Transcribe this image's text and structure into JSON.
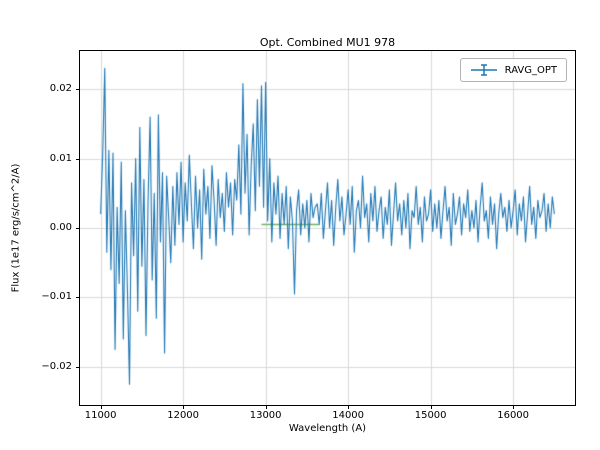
{
  "chart_data": {
    "type": "line",
    "title": "Opt. Combined MU1 978",
    "xlabel": "Wavelength (A)",
    "ylabel": "Flux (1e17 erg/s/cm^2/A)",
    "xlim": [
      10750,
      16750
    ],
    "ylim": [
      -0.0255,
      0.0255
    ],
    "x_ticks": [
      11000,
      12000,
      13000,
      14000,
      15000,
      16000
    ],
    "y_ticks": [
      -0.02,
      -0.01,
      0.0,
      0.01,
      0.02
    ],
    "grid": true,
    "legend_position": "upper right",
    "legend_entries": [
      "RAVG_OPT"
    ],
    "colors": {
      "primary_line": "#1f77b4",
      "overlay_line": "#74b266",
      "grid": "#d9d9d9"
    },
    "series": [
      {
        "name": "RAVG_OPT",
        "color": "#1f77b4",
        "style": "errorbar-line",
        "x_start": 11000,
        "x_step": 25,
        "y_unit_scale": 0.001,
        "y_1e3": [
          2.0,
          10.5,
          23.0,
          -3.5,
          11.2,
          -6.0,
          10.8,
          -17.5,
          3.0,
          -8.0,
          9.5,
          -16.0,
          2.5,
          -9.0,
          -22.5,
          6.5,
          -4.0,
          10.0,
          -12.0,
          14.5,
          -5.5,
          7.0,
          -15.5,
          4.0,
          16.0,
          -7.5,
          5.0,
          -13.0,
          16.3,
          -2.0,
          8.0,
          -18.0,
          7.5,
          1.5,
          -5.0,
          6.0,
          -2.5,
          8.0,
          0.5,
          9.5,
          -2.0,
          6.5,
          1.0,
          10.5,
          3.5,
          -3.0,
          7.5,
          0.0,
          5.5,
          -4.5,
          8.5,
          2.0,
          6.0,
          -1.5,
          9.0,
          4.0,
          -2.5,
          7.0,
          1.5,
          5.0,
          -0.5,
          8.0,
          3.0,
          6.5,
          -1.0,
          7.0,
          4.0,
          12.0,
          2.0,
          20.8,
          5.0,
          13.5,
          -1.0,
          9.0,
          15.0,
          2.5,
          18.5,
          6.0,
          20.5,
          3.0,
          21.0,
          1.0,
          10.0,
          -2.0,
          6.5,
          2.0,
          7.5,
          -1.5,
          5.0,
          0.5,
          6.0,
          -3.0,
          4.5,
          1.0,
          -9.5,
          2.5,
          5.5,
          -1.0,
          3.5,
          0.0,
          4.0,
          -2.0,
          5.0,
          1.5,
          3.0,
          3.5,
          0.5,
          5.0,
          -1.5,
          2.5,
          6.5,
          0.0,
          4.0,
          -2.5,
          3.0,
          7.0,
          1.0,
          4.5,
          -1.0,
          2.0,
          5.5,
          0.5,
          6.0,
          -3.5,
          2.5,
          4.0,
          0.0,
          7.5,
          1.5,
          3.5,
          -2.0,
          5.0,
          1.0,
          6.0,
          -0.5,
          2.5,
          4.5,
          -1.5,
          3.0,
          0.5,
          5.5,
          -2.5,
          2.0,
          6.5,
          1.0,
          3.5,
          -1.0,
          4.0,
          0.0,
          5.0,
          -3.0,
          2.5,
          1.5,
          6.0,
          0.5,
          3.0,
          -2.0,
          4.5,
          1.0,
          2.0,
          5.5,
          -0.5,
          3.5,
          0.0,
          4.0,
          -1.5,
          2.5,
          6.0,
          1.0,
          3.0,
          -2.5,
          5.0,
          0.5,
          2.0,
          4.5,
          -1.0,
          3.5,
          1.5,
          5.5,
          -0.5,
          2.5,
          0.0,
          4.0,
          -2.0,
          3.0,
          6.5,
          1.0,
          2.5,
          -1.5,
          4.5,
          0.5,
          3.5,
          -3.0,
          2.0,
          5.0,
          1.5,
          3.0,
          -0.5,
          4.0,
          0.0,
          2.5,
          5.5,
          -1.0,
          3.5,
          1.0,
          4.5,
          -2.0,
          2.0,
          6.0,
          0.5,
          3.0,
          -1.5,
          4.0,
          1.5,
          2.5,
          5.0,
          -0.5,
          3.5,
          0.0,
          4.5,
          2.0
        ]
      },
      {
        "name": "overlay-baseline",
        "color": "#74b266",
        "style": "plain-line",
        "show_in_legend": false,
        "x": [
          12950,
          13650
        ],
        "y": [
          0.0005,
          0.0005
        ]
      }
    ]
  }
}
